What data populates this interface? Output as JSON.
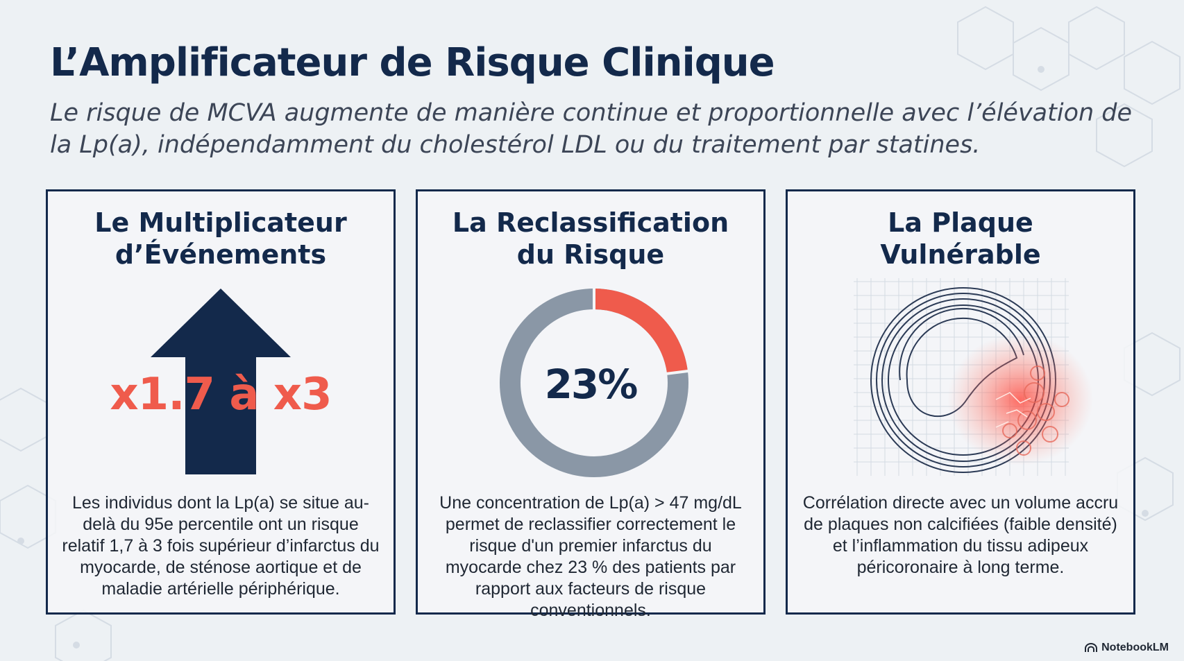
{
  "header": {
    "title": "L’Amplificateur de Risque Clinique",
    "subtitle": "Le risque de MCVA augmente de manière continue et proportionnelle avec l’élévation de la Lp(a), indépendamment du cholestérol LDL ou du traitement par statines."
  },
  "cards": [
    {
      "title": "Le Multiplicateur\nd’Événements",
      "highlight": "x1.7 à x3",
      "text": "Les individus dont la Lp(a) se situe au-delà du 95e percentile ont un risque relatif  1,7 à 3 fois supérieur d’infarctus du myocarde, de sténose aortique et de maladie artérielle périphérique."
    },
    {
      "title": "La Reclassification\ndu Risque",
      "highlight": "23%",
      "donut_fraction": 0.23,
      "text": "Une concentration de Lp(a) > 47 mg/dL permet de reclassifier correctement le risque d'un premier infarctus du myocarde chez 23 % des patients par rapport aux facteurs de risque conventionnels."
    },
    {
      "title": "La Plaque\nVulnérable",
      "text": "Corrélation directe avec un volume accru de plaques non calcifiées (faible densité) et l’inflammation du tissu adipeux péricoronaire à long terme."
    }
  ],
  "brand": {
    "name": "NotebookLM",
    "icon": "notebooklm-logo-icon"
  },
  "colors": {
    "navy": "#13294b",
    "accent_red": "#ef5b4c",
    "donut_grey": "#8a97a6"
  }
}
